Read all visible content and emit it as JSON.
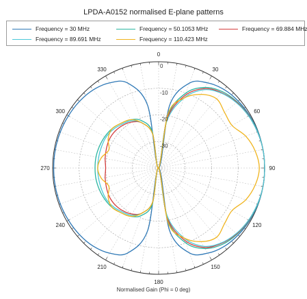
{
  "chart_data": {
    "type": "polar-line",
    "title": "LPDA-A0152 normalised E-plane patterns",
    "xlabel": "Normalised Gain (Phi = 0 deg)",
    "angle_ticks": [
      "0",
      "30",
      "60",
      "90",
      "120",
      "150",
      "180",
      "210",
      "240",
      "270",
      "300",
      "330"
    ],
    "radial_ticks": [
      "0",
      "-10",
      "-20",
      "-30"
    ],
    "radial_range_db": [
      -40,
      0
    ],
    "legend_placement": "top",
    "series": [
      {
        "name": "Frequency = 30 MHz",
        "color": "#2e78b6",
        "points": [
          [
            0,
            -40
          ],
          [
            10,
            -16
          ],
          [
            20,
            -6
          ],
          [
            30,
            -3
          ],
          [
            40,
            -1.5
          ],
          [
            50,
            -0.8
          ],
          [
            60,
            -0.4
          ],
          [
            70,
            -0.1
          ],
          [
            80,
            0
          ],
          [
            90,
            0
          ],
          [
            100,
            0
          ],
          [
            110,
            -0.1
          ],
          [
            120,
            -0.4
          ],
          [
            130,
            -0.8
          ],
          [
            140,
            -1.5
          ],
          [
            150,
            -3
          ],
          [
            160,
            -6
          ],
          [
            170,
            -16
          ],
          [
            180,
            -40
          ],
          [
            190,
            -16
          ],
          [
            200,
            -6
          ],
          [
            210,
            -3
          ],
          [
            220,
            -1.6
          ],
          [
            230,
            -1.0
          ],
          [
            240,
            -0.7
          ],
          [
            250,
            -0.5
          ],
          [
            260,
            -0.4
          ],
          [
            270,
            -0.4
          ],
          [
            280,
            -0.4
          ],
          [
            290,
            -0.5
          ],
          [
            300,
            -0.7
          ],
          [
            310,
            -1.0
          ],
          [
            320,
            -1.6
          ],
          [
            330,
            -3
          ],
          [
            340,
            -6
          ],
          [
            350,
            -16
          ]
        ]
      },
      {
        "name": "Frequency = 50.1053 MHz",
        "color": "#2ab5a0",
        "points": [
          [
            0,
            -40
          ],
          [
            10,
            -20
          ],
          [
            20,
            -10
          ],
          [
            30,
            -5
          ],
          [
            40,
            -2.5
          ],
          [
            50,
            -1.3
          ],
          [
            60,
            -0.6
          ],
          [
            70,
            -0.2
          ],
          [
            80,
            0
          ],
          [
            90,
            0
          ],
          [
            100,
            0
          ],
          [
            110,
            -0.2
          ],
          [
            120,
            -0.6
          ],
          [
            130,
            -1.3
          ],
          [
            140,
            -2.5
          ],
          [
            150,
            -5
          ],
          [
            160,
            -10
          ],
          [
            170,
            -20
          ],
          [
            180,
            -40
          ],
          [
            190,
            -26
          ],
          [
            200,
            -21
          ],
          [
            210,
            -19
          ],
          [
            220,
            -18
          ],
          [
            230,
            -17
          ],
          [
            240,
            -16.5
          ],
          [
            250,
            -16.2
          ],
          [
            260,
            -16
          ],
          [
            270,
            -16
          ],
          [
            280,
            -16
          ],
          [
            290,
            -16.2
          ],
          [
            300,
            -16.5
          ],
          [
            310,
            -17
          ],
          [
            320,
            -18
          ],
          [
            330,
            -19
          ],
          [
            340,
            -21
          ],
          [
            350,
            -26
          ]
        ]
      },
      {
        "name": "Frequency = 69.884 MHz",
        "color": "#d43c3c",
        "points": [
          [
            0,
            -40
          ],
          [
            10,
            -21
          ],
          [
            20,
            -11
          ],
          [
            30,
            -5.5
          ],
          [
            40,
            -3
          ],
          [
            50,
            -1.5
          ],
          [
            60,
            -0.7
          ],
          [
            70,
            -0.3
          ],
          [
            80,
            0
          ],
          [
            90,
            0
          ],
          [
            100,
            0
          ],
          [
            110,
            -0.3
          ],
          [
            120,
            -0.7
          ],
          [
            130,
            -1.5
          ],
          [
            140,
            -3
          ],
          [
            150,
            -5.5
          ],
          [
            160,
            -11
          ],
          [
            170,
            -21
          ],
          [
            180,
            -40
          ],
          [
            190,
            -27
          ],
          [
            200,
            -22
          ],
          [
            210,
            -20
          ],
          [
            220,
            -19
          ],
          [
            230,
            -18.5
          ],
          [
            240,
            -18.5
          ],
          [
            250,
            -19
          ],
          [
            260,
            -19.5
          ],
          [
            270,
            -20
          ],
          [
            280,
            -19.5
          ],
          [
            290,
            -19
          ],
          [
            300,
            -18.5
          ],
          [
            310,
            -18.5
          ],
          [
            320,
            -19
          ],
          [
            330,
            -20
          ],
          [
            340,
            -22
          ],
          [
            350,
            -27
          ]
        ]
      },
      {
        "name": "Frequency = 89.691 MHz",
        "color": "#4cc8d8",
        "points": [
          [
            0,
            -40
          ],
          [
            10,
            -22
          ],
          [
            20,
            -12
          ],
          [
            30,
            -6
          ],
          [
            40,
            -3.2
          ],
          [
            50,
            -1.7
          ],
          [
            60,
            -0.8
          ],
          [
            70,
            -0.3
          ],
          [
            80,
            0
          ],
          [
            90,
            0
          ],
          [
            100,
            0
          ],
          [
            110,
            -0.3
          ],
          [
            120,
            -0.8
          ],
          [
            130,
            -1.7
          ],
          [
            140,
            -3.2
          ],
          [
            150,
            -6
          ],
          [
            160,
            -12
          ],
          [
            170,
            -22
          ],
          [
            180,
            -40
          ],
          [
            190,
            -27
          ],
          [
            200,
            -22
          ],
          [
            210,
            -19.5
          ],
          [
            220,
            -18.5
          ],
          [
            230,
            -17.5
          ],
          [
            240,
            -17
          ],
          [
            250,
            -17
          ],
          [
            260,
            -17
          ],
          [
            270,
            -17
          ],
          [
            280,
            -17
          ],
          [
            290,
            -17
          ],
          [
            300,
            -17
          ],
          [
            310,
            -17.5
          ],
          [
            320,
            -18.5
          ],
          [
            330,
            -19.5
          ],
          [
            340,
            -22
          ],
          [
            350,
            -27
          ]
        ]
      },
      {
        "name": "Frequency = 110.423 MHz",
        "color": "#f0b41e",
        "points": [
          [
            0,
            -40
          ],
          [
            10,
            -19
          ],
          [
            20,
            -12
          ],
          [
            30,
            -8
          ],
          [
            40,
            -6
          ],
          [
            50,
            -7.5
          ],
          [
            60,
            -8
          ],
          [
            70,
            -5
          ],
          [
            80,
            -3
          ],
          [
            90,
            -2
          ],
          [
            100,
            -3
          ],
          [
            110,
            -5
          ],
          [
            120,
            -8
          ],
          [
            130,
            -7.5
          ],
          [
            140,
            -6
          ],
          [
            150,
            -8
          ],
          [
            160,
            -12
          ],
          [
            170,
            -19
          ],
          [
            180,
            -40
          ],
          [
            190,
            -27
          ],
          [
            200,
            -22
          ],
          [
            210,
            -19
          ],
          [
            220,
            -18
          ],
          [
            230,
            -17
          ],
          [
            240,
            -18
          ],
          [
            250,
            -20
          ],
          [
            260,
            -18
          ],
          [
            270,
            -17
          ],
          [
            280,
            -18
          ],
          [
            290,
            -20
          ],
          [
            300,
            -18
          ],
          [
            310,
            -17
          ],
          [
            320,
            -18
          ],
          [
            330,
            -19
          ],
          [
            340,
            -22
          ],
          [
            350,
            -27
          ]
        ]
      }
    ]
  }
}
